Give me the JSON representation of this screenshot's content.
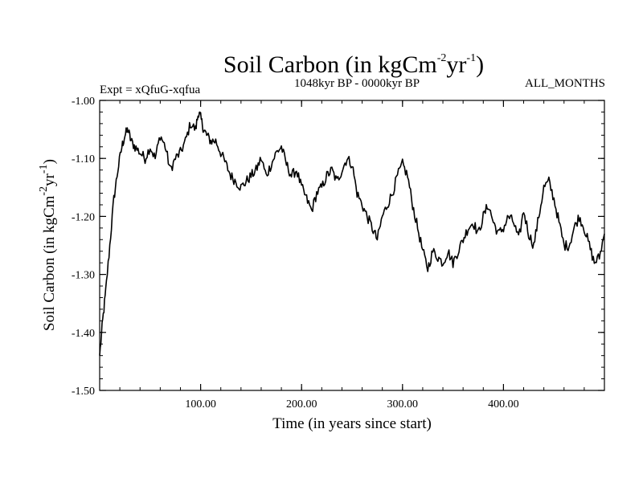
{
  "chart_data": {
    "type": "line",
    "title": {
      "main": "Soil Carbon (in kgCm",
      "exp1": "-2",
      "mid": "yr",
      "exp2": "-1",
      "tail": ")"
    },
    "subtitle_left": "Expt = xQfuG-xqfua",
    "subtitle_center": "1048kyr BP - 0000kyr BP",
    "subtitle_right": "ALL_MONTHS",
    "xlabel": "Time (in years since start)",
    "ylabel": {
      "main": "Soil Carbon (in kgCm",
      "exp1": "-2",
      "mid": "yr",
      "exp2": "-1",
      "tail": ")"
    },
    "xlim": [
      0,
      500
    ],
    "ylim": [
      -1.5,
      -1.0
    ],
    "x_ticks": [
      {
        "value": 100,
        "label": "100.00"
      },
      {
        "value": 200,
        "label": "200.00"
      },
      {
        "value": 300,
        "label": "300.00"
      },
      {
        "value": 400,
        "label": "400.00"
      }
    ],
    "y_ticks": [
      {
        "value": -1.0,
        "label": "-1.00"
      },
      {
        "value": -1.1,
        "label": "-1.10"
      },
      {
        "value": -1.2,
        "label": "-1.20"
      },
      {
        "value": -1.3,
        "label": "-1.30"
      },
      {
        "value": -1.4,
        "label": "-1.40"
      },
      {
        "value": -1.5,
        "label": "-1.50"
      }
    ],
    "grid": false,
    "series": [
      {
        "name": "Soil Carbon",
        "color": "#000000",
        "x": [
          0,
          3,
          6,
          10,
          14,
          18,
          22,
          25,
          28,
          31,
          35,
          40,
          45,
          50,
          55,
          60,
          65,
          70,
          75,
          80,
          85,
          90,
          95,
          98,
          100,
          103,
          106,
          110,
          115,
          120,
          125,
          130,
          135,
          140,
          145,
          150,
          155,
          160,
          165,
          170,
          175,
          180,
          185,
          190,
          195,
          200,
          205,
          210,
          215,
          220,
          225,
          230,
          235,
          240,
          245,
          250,
          255,
          260,
          265,
          270,
          275,
          280,
          285,
          290,
          295,
          300,
          305,
          310,
          315,
          320,
          325,
          330,
          335,
          340,
          345,
          350,
          355,
          360,
          365,
          370,
          375,
          380,
          385,
          390,
          395,
          400,
          405,
          410,
          415,
          420,
          425,
          430,
          435,
          440,
          445,
          450,
          455,
          460,
          465,
          470,
          475,
          480,
          485,
          490,
          495,
          500
        ],
        "values": [
          -1.44,
          -1.38,
          -1.33,
          -1.25,
          -1.17,
          -1.12,
          -1.08,
          -1.06,
          -1.05,
          -1.07,
          -1.08,
          -1.09,
          -1.1,
          -1.08,
          -1.1,
          -1.06,
          -1.08,
          -1.12,
          -1.1,
          -1.09,
          -1.07,
          -1.04,
          -1.05,
          -1.02,
          -1.03,
          -1.05,
          -1.06,
          -1.07,
          -1.07,
          -1.09,
          -1.11,
          -1.13,
          -1.14,
          -1.15,
          -1.14,
          -1.13,
          -1.12,
          -1.1,
          -1.13,
          -1.11,
          -1.09,
          -1.08,
          -1.11,
          -1.13,
          -1.12,
          -1.15,
          -1.17,
          -1.19,
          -1.16,
          -1.15,
          -1.13,
          -1.12,
          -1.14,
          -1.12,
          -1.1,
          -1.11,
          -1.16,
          -1.18,
          -1.2,
          -1.22,
          -1.24,
          -1.2,
          -1.18,
          -1.16,
          -1.13,
          -1.11,
          -1.13,
          -1.18,
          -1.22,
          -1.26,
          -1.29,
          -1.26,
          -1.27,
          -1.28,
          -1.26,
          -1.28,
          -1.26,
          -1.24,
          -1.22,
          -1.21,
          -1.23,
          -1.2,
          -1.18,
          -1.21,
          -1.23,
          -1.22,
          -1.2,
          -1.21,
          -1.24,
          -1.19,
          -1.23,
          -1.25,
          -1.2,
          -1.15,
          -1.14,
          -1.17,
          -1.21,
          -1.25,
          -1.25,
          -1.22,
          -1.2,
          -1.22,
          -1.25,
          -1.28,
          -1.27,
          -1.23
        ]
      }
    ]
  }
}
